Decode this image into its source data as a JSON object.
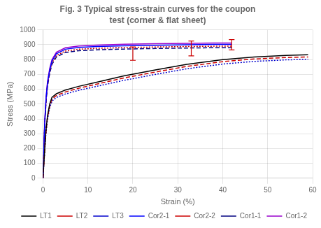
{
  "chart_data": {
    "type": "line",
    "title": "Fig. 3 Typical stress-strain curves for the coupon",
    "subtitle": "test (corner & flat sheet)",
    "x_label": "Strain (%)",
    "y_label": "Stress (MPa)",
    "xlim": [
      0,
      60
    ],
    "ylim": [
      0,
      1000
    ],
    "xticks": [
      0,
      10,
      20,
      30,
      40,
      50,
      60
    ],
    "yticks": [
      0,
      100,
      200,
      300,
      400,
      500,
      600,
      700,
      800,
      900,
      1000
    ],
    "grid": true,
    "legend": "lower right",
    "series": [
      {
        "name": "LT1",
        "color": "#000000",
        "line_style": "solid",
        "x": [
          0,
          0.3,
          0.6,
          1,
          1.5,
          2,
          3,
          5,
          8,
          12,
          18,
          25,
          32,
          40,
          47,
          54,
          59
        ],
        "values": [
          0,
          150,
          300,
          420,
          500,
          545,
          570,
          595,
          620,
          648,
          690,
          730,
          768,
          800,
          818,
          828,
          833
        ]
      },
      {
        "name": "LT2",
        "color": "#cc0000",
        "line_style": "dashed",
        "x": [
          0,
          0.3,
          0.6,
          1,
          1.5,
          2,
          3,
          5,
          8,
          12,
          18,
          25,
          32,
          40,
          47,
          54,
          59
        ],
        "values": [
          0,
          145,
          290,
          408,
          488,
          533,
          558,
          582,
          607,
          635,
          676,
          716,
          754,
          786,
          804,
          814,
          818
        ]
      },
      {
        "name": "LT3",
        "color": "#0000cc",
        "line_style": "dotted",
        "x": [
          0,
          0.3,
          0.6,
          1,
          1.5,
          2,
          3,
          5,
          8,
          12,
          18,
          25,
          32,
          40,
          47,
          54,
          59
        ],
        "values": [
          0,
          140,
          280,
          395,
          475,
          520,
          545,
          568,
          593,
          620,
          660,
          700,
          738,
          770,
          788,
          798,
          802
        ]
      },
      {
        "name": "Cor2-1",
        "color": "#0000ff",
        "line_style": "solid",
        "x": [
          0,
          0.2,
          0.4,
          0.7,
          1.0,
          1.5,
          2,
          3,
          5,
          8,
          12,
          18,
          25,
          32,
          38,
          42
        ],
        "values": [
          0,
          200,
          380,
          540,
          640,
          730,
          790,
          840,
          870,
          882,
          888,
          893,
          897,
          900,
          902,
          902
        ]
      },
      {
        "name": "Cor2-2",
        "color": "#cc0000",
        "line_style": "dotted",
        "x": [
          0,
          0.2,
          0.4,
          0.7,
          1.0,
          1.5,
          2,
          3,
          5,
          8,
          12,
          18,
          25,
          32,
          38,
          42
        ],
        "values": [
          0,
          195,
          372,
          530,
          628,
          718,
          778,
          828,
          858,
          870,
          876,
          881,
          885,
          888,
          890,
          890
        ]
      },
      {
        "name": "Cor1-1",
        "color": "#000080",
        "line_style": "dashed",
        "x": [
          0,
          0.2,
          0.4,
          0.7,
          1.0,
          1.5,
          2,
          3,
          5,
          8,
          12,
          18,
          25,
          32,
          38,
          42
        ],
        "values": [
          0,
          190,
          365,
          520,
          618,
          708,
          768,
          818,
          848,
          860,
          866,
          871,
          875,
          878,
          880,
          880
        ]
      },
      {
        "name": "Cor1-2",
        "color": "#9900cc",
        "line_style": "solid",
        "x": [
          0,
          0.2,
          0.4,
          0.7,
          1.0,
          1.5,
          2,
          3,
          5,
          8,
          12,
          18,
          25,
          32,
          38,
          42
        ],
        "values": [
          0,
          205,
          388,
          550,
          650,
          740,
          800,
          850,
          880,
          892,
          898,
          903,
          907,
          910,
          912,
          912
        ]
      }
    ],
    "error_bars": [
      {
        "x": 20,
        "y": 840,
        "yerr": 45,
        "color": "#cc0000"
      },
      {
        "x": 33,
        "y": 875,
        "yerr": 50,
        "color": "#cc0000"
      },
      {
        "x": 42,
        "y": 900,
        "yerr": 35,
        "color": "#cc0000"
      }
    ]
  }
}
